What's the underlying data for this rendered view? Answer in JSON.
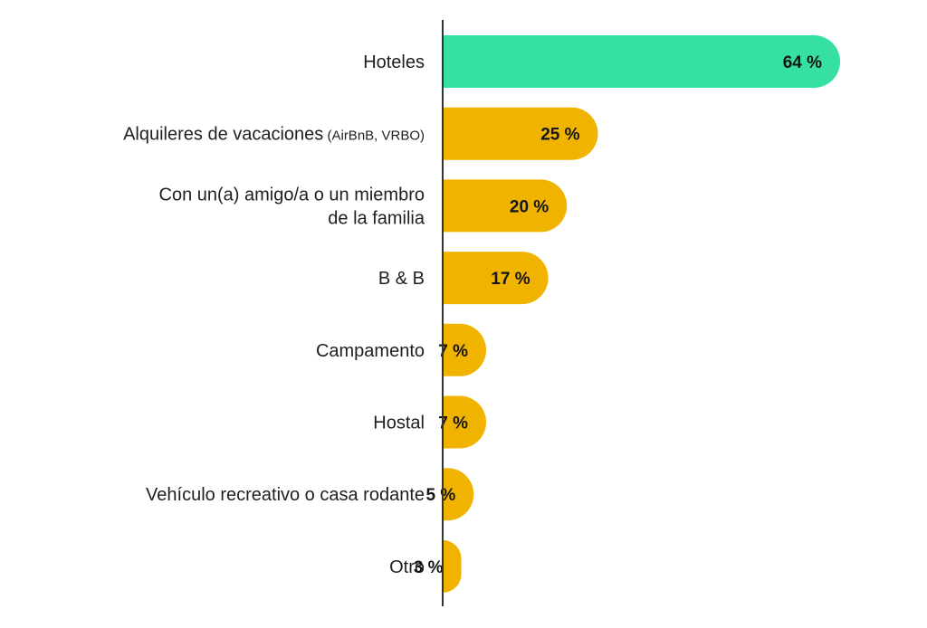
{
  "chart_data": {
    "type": "bar",
    "orientation": "horizontal",
    "title": "",
    "xlabel": "",
    "ylabel": "",
    "xlim": [
      0,
      100
    ],
    "grid": false,
    "categories": [
      "Hoteles",
      "Alquileres de vacaciones (AirBnB, VRBO)",
      "Con un(a) amigo/a o un miembro de la familia",
      "B & B",
      "Campamento",
      "Hostal",
      "Vehículo recreativo o casa rodante",
      "Otro"
    ],
    "category_lines": [
      [
        {
          "text": "Hoteles"
        }
      ],
      [
        {
          "text": "Alquileres de vacaciones",
          "sub": "(AirBnB, VRBO)"
        }
      ],
      [
        {
          "text": "Con un(a) amigo/a o un miembro"
        },
        {
          "text": "de la familia"
        }
      ],
      [
        {
          "text": "B & B"
        }
      ],
      [
        {
          "text": "Campamento"
        }
      ],
      [
        {
          "text": "Hostal"
        }
      ],
      [
        {
          "text": "Vehículo recreativo o casa rodante"
        }
      ],
      [
        {
          "text": "Otro"
        }
      ]
    ],
    "values": [
      64,
      25,
      20,
      17,
      7,
      7,
      5,
      3
    ],
    "value_labels": [
      "64 %",
      "25 %",
      "20 %",
      "17 %",
      "7 %",
      "7 %",
      "5 %",
      "3 %"
    ],
    "colors": {
      "highlight": "#35e0a1",
      "default": "#f0b400",
      "axis": "#333333"
    },
    "highlight_index": 0
  }
}
